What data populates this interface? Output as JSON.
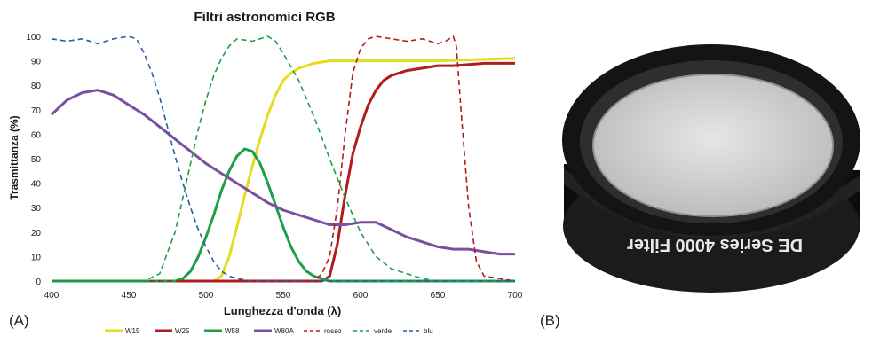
{
  "panels": {
    "left_label": "(A)",
    "right_label": "(B)"
  },
  "chart_data": {
    "type": "line",
    "title": "Filtri astronomici RGB",
    "xlabel": "Lunghezza d'onda (λ)",
    "ylabel": "Trasmittanza (%)",
    "xlim": [
      400,
      700
    ],
    "ylim": [
      0,
      100
    ],
    "xticks": [
      400,
      450,
      500,
      550,
      600,
      650,
      700
    ],
    "yticks": [
      0,
      10,
      20,
      30,
      40,
      50,
      60,
      70,
      80,
      90,
      100
    ],
    "grid": false,
    "legend_position": "bottom",
    "series": [
      {
        "name": "W15",
        "color": "#e6dc1e",
        "style": "solid",
        "x": [
          400,
          505,
          510,
          515,
          520,
          525,
          530,
          535,
          540,
          545,
          550,
          555,
          560,
          570,
          580,
          600,
          650,
          700
        ],
        "y": [
          0,
          0,
          2,
          10,
          22,
          35,
          47,
          58,
          68,
          76,
          82,
          85,
          87,
          89,
          90,
          90,
          90,
          91
        ]
      },
      {
        "name": "W25",
        "color": "#b01c1c",
        "style": "solid",
        "x": [
          400,
          575,
          580,
          585,
          590,
          595,
          600,
          605,
          610,
          615,
          620,
          630,
          640,
          650,
          660,
          680,
          700
        ],
        "y": [
          0,
          0,
          2,
          15,
          35,
          52,
          63,
          72,
          78,
          82,
          84,
          86,
          87,
          88,
          88,
          89,
          89
        ]
      },
      {
        "name": "W58",
        "color": "#1e9e46",
        "style": "solid",
        "x": [
          400,
          480,
          485,
          490,
          495,
          500,
          505,
          510,
          515,
          520,
          525,
          530,
          535,
          540,
          545,
          550,
          555,
          560,
          565,
          570,
          575,
          580,
          590,
          700
        ],
        "y": [
          0,
          0,
          1,
          4,
          10,
          18,
          27,
          37,
          45,
          51,
          54,
          53,
          48,
          40,
          31,
          22,
          14,
          8,
          4,
          2,
          1,
          0,
          0,
          0
        ]
      },
      {
        "name": "W80A",
        "color": "#7a4fa0",
        "style": "solid",
        "x": [
          400,
          410,
          420,
          430,
          440,
          450,
          460,
          470,
          480,
          490,
          500,
          510,
          520,
          530,
          540,
          550,
          560,
          570,
          580,
          590,
          600,
          610,
          620,
          630,
          640,
          650,
          660,
          670,
          680,
          690,
          700
        ],
        "y": [
          68,
          74,
          77,
          78,
          76,
          72,
          68,
          63,
          58,
          53,
          48,
          44,
          40,
          36,
          32,
          29,
          27,
          25,
          23,
          23,
          24,
          24,
          21,
          18,
          16,
          14,
          13,
          13,
          12,
          11,
          11
        ]
      },
      {
        "name": "rosso",
        "color": "#b01c1c",
        "style": "dashed",
        "x": [
          400,
          570,
          575,
          580,
          585,
          590,
          595,
          600,
          605,
          610,
          620,
          630,
          640,
          650,
          655,
          660,
          662,
          665,
          670,
          675,
          680,
          690,
          700
        ],
        "y": [
          0,
          0,
          3,
          10,
          30,
          60,
          85,
          95,
          99,
          100,
          99,
          98,
          99,
          97,
          98,
          100,
          96,
          70,
          30,
          8,
          2,
          1,
          0
        ]
      },
      {
        "name": "verde",
        "color": "#1e9e46",
        "style": "dashed",
        "x": [
          400,
          460,
          470,
          480,
          490,
          495,
          500,
          505,
          510,
          515,
          520,
          530,
          540,
          545,
          550,
          560,
          570,
          580,
          590,
          600,
          610,
          620,
          630,
          640,
          650,
          700
        ],
        "y": [
          0,
          0,
          3,
          20,
          48,
          62,
          74,
          84,
          91,
          96,
          99,
          98,
          100,
          98,
          93,
          82,
          67,
          50,
          34,
          20,
          10,
          5,
          3,
          1,
          0,
          0
        ]
      },
      {
        "name": "blu",
        "color": "#2a5ba8",
        "style": "dashed",
        "x": [
          400,
          410,
          420,
          430,
          440,
          450,
          455,
          460,
          465,
          470,
          475,
          480,
          485,
          490,
          495,
          500,
          505,
          510,
          515,
          520,
          530,
          700
        ],
        "y": [
          99,
          98,
          99,
          97,
          99,
          100,
          99,
          93,
          85,
          75,
          63,
          51,
          40,
          30,
          21,
          14,
          8,
          4,
          2,
          1,
          0,
          0
        ]
      }
    ]
  },
  "photo": {
    "filter_text": "DE Series 4000 Filter",
    "colors": {
      "body": "#151515",
      "ring": "#2a2a2a",
      "glass": "#d2d4d6",
      "glass_edge": "#a9abad"
    }
  }
}
